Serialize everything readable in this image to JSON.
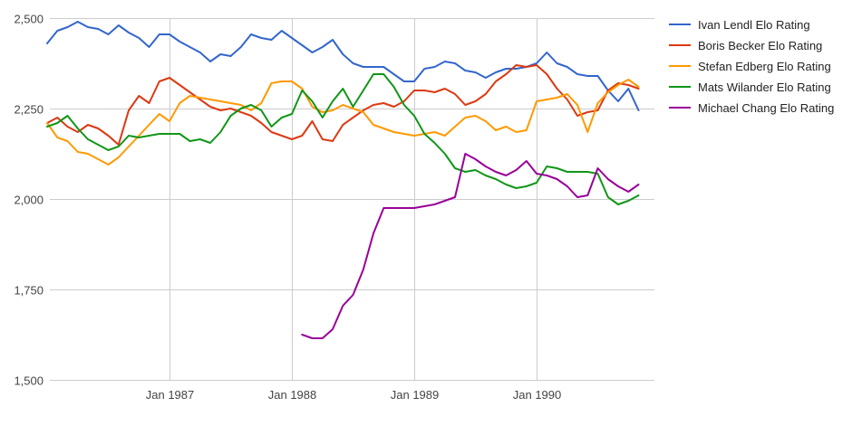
{
  "chart_data": {
    "type": "line",
    "title": "",
    "xlabel": "",
    "ylabel": "",
    "ylim": [
      1500,
      2500
    ],
    "xlim": [
      "1986-01",
      "1990-11"
    ],
    "yticks": [
      1500,
      1750,
      2000,
      2250,
      2500
    ],
    "ytick_labels": [
      "1,500",
      "1,750",
      "2,000",
      "2,250",
      "2,500"
    ],
    "xticks": [
      {
        "label": "Jan 1987",
        "date": "1987-01"
      },
      {
        "label": "Jan 1988",
        "date": "1988-01"
      },
      {
        "label": "Jan 1989",
        "date": "1989-01"
      },
      {
        "label": "Jan 1990",
        "date": "1990-01"
      }
    ],
    "grid": true,
    "legend_position": "right",
    "series": [
      {
        "name": "Ivan Lendl Elo Rating",
        "color": "#3366cc",
        "points": [
          [
            "1986-01",
            2430
          ],
          [
            "1986-02",
            2465
          ],
          [
            "1986-03",
            2475
          ],
          [
            "1986-04",
            2490
          ],
          [
            "1986-05",
            2475
          ],
          [
            "1986-06",
            2470
          ],
          [
            "1986-07",
            2455
          ],
          [
            "1986-08",
            2480
          ],
          [
            "1986-09",
            2460
          ],
          [
            "1986-10",
            2445
          ],
          [
            "1986-11",
            2420
          ],
          [
            "1986-12",
            2455
          ],
          [
            "1987-01",
            2455
          ],
          [
            "1987-02",
            2435
          ],
          [
            "1987-03",
            2420
          ],
          [
            "1987-04",
            2405
          ],
          [
            "1987-05",
            2380
          ],
          [
            "1987-06",
            2400
          ],
          [
            "1987-07",
            2395
          ],
          [
            "1987-08",
            2420
          ],
          [
            "1987-09",
            2455
          ],
          [
            "1987-10",
            2445
          ],
          [
            "1987-11",
            2440
          ],
          [
            "1987-12",
            2465
          ],
          [
            "1988-01",
            2445
          ],
          [
            "1988-02",
            2425
          ],
          [
            "1988-03",
            2405
          ],
          [
            "1988-04",
            2420
          ],
          [
            "1988-05",
            2440
          ],
          [
            "1988-06",
            2400
          ],
          [
            "1988-07",
            2375
          ],
          [
            "1988-08",
            2365
          ],
          [
            "1988-09",
            2365
          ],
          [
            "1988-10",
            2365
          ],
          [
            "1988-11",
            2345
          ],
          [
            "1988-12",
            2325
          ],
          [
            "1989-01",
            2325
          ],
          [
            "1989-02",
            2360
          ],
          [
            "1989-03",
            2365
          ],
          [
            "1989-04",
            2380
          ],
          [
            "1989-05",
            2375
          ],
          [
            "1989-06",
            2355
          ],
          [
            "1989-07",
            2350
          ],
          [
            "1989-08",
            2335
          ],
          [
            "1989-09",
            2350
          ],
          [
            "1989-10",
            2360
          ],
          [
            "1989-11",
            2360
          ],
          [
            "1989-12",
            2365
          ],
          [
            "1990-01",
            2375
          ],
          [
            "1990-02",
            2405
          ],
          [
            "1990-03",
            2375
          ],
          [
            "1990-04",
            2365
          ],
          [
            "1990-05",
            2345
          ],
          [
            "1990-06",
            2340
          ],
          [
            "1990-07",
            2340
          ],
          [
            "1990-08",
            2300
          ],
          [
            "1990-09",
            2270
          ],
          [
            "1990-10",
            2305
          ],
          [
            "1990-11",
            2245
          ]
        ]
      },
      {
        "name": "Boris Becker Elo Rating",
        "color": "#dc3912",
        "points": [
          [
            "1986-01",
            2210
          ],
          [
            "1986-02",
            2225
          ],
          [
            "1986-03",
            2200
          ],
          [
            "1986-04",
            2185
          ],
          [
            "1986-05",
            2205
          ],
          [
            "1986-06",
            2195
          ],
          [
            "1986-07",
            2175
          ],
          [
            "1986-08",
            2150
          ],
          [
            "1986-09",
            2245
          ],
          [
            "1986-10",
            2285
          ],
          [
            "1986-11",
            2265
          ],
          [
            "1986-12",
            2325
          ],
          [
            "1987-01",
            2335
          ],
          [
            "1987-02",
            2315
          ],
          [
            "1987-03",
            2295
          ],
          [
            "1987-04",
            2275
          ],
          [
            "1987-05",
            2255
          ],
          [
            "1987-06",
            2245
          ],
          [
            "1987-07",
            2250
          ],
          [
            "1987-08",
            2240
          ],
          [
            "1987-09",
            2230
          ],
          [
            "1987-10",
            2210
          ],
          [
            "1987-11",
            2185
          ],
          [
            "1987-12",
            2175
          ],
          [
            "1988-01",
            2165
          ],
          [
            "1988-02",
            2175
          ],
          [
            "1988-03",
            2215
          ],
          [
            "1988-04",
            2165
          ],
          [
            "1988-05",
            2160
          ],
          [
            "1988-06",
            2205
          ],
          [
            "1988-07",
            2225
          ],
          [
            "1988-08",
            2245
          ],
          [
            "1988-09",
            2260
          ],
          [
            "1988-10",
            2265
          ],
          [
            "1988-11",
            2255
          ],
          [
            "1988-12",
            2270
          ],
          [
            "1989-01",
            2300
          ],
          [
            "1989-02",
            2300
          ],
          [
            "1989-03",
            2295
          ],
          [
            "1989-04",
            2305
          ],
          [
            "1989-05",
            2290
          ],
          [
            "1989-06",
            2260
          ],
          [
            "1989-07",
            2270
          ],
          [
            "1989-08",
            2290
          ],
          [
            "1989-09",
            2325
          ],
          [
            "1989-10",
            2345
          ],
          [
            "1989-11",
            2370
          ],
          [
            "1989-12",
            2365
          ],
          [
            "1990-01",
            2370
          ],
          [
            "1990-02",
            2345
          ],
          [
            "1990-03",
            2305
          ],
          [
            "1990-04",
            2275
          ],
          [
            "1990-05",
            2230
          ],
          [
            "1990-06",
            2240
          ],
          [
            "1990-07",
            2245
          ],
          [
            "1990-08",
            2300
          ],
          [
            "1990-09",
            2320
          ],
          [
            "1990-10",
            2315
          ],
          [
            "1990-11",
            2305
          ]
        ]
      },
      {
        "name": "Stefan Edberg Elo Rating",
        "color": "#ff9900",
        "points": [
          [
            "1986-01",
            2210
          ],
          [
            "1986-02",
            2170
          ],
          [
            "1986-03",
            2160
          ],
          [
            "1986-04",
            2130
          ],
          [
            "1986-05",
            2125
          ],
          [
            "1986-06",
            2110
          ],
          [
            "1986-07",
            2095
          ],
          [
            "1986-08",
            2115
          ],
          [
            "1986-09",
            2145
          ],
          [
            "1986-10",
            2175
          ],
          [
            "1986-11",
            2205
          ],
          [
            "1986-12",
            2235
          ],
          [
            "1987-01",
            2215
          ],
          [
            "1987-02",
            2265
          ],
          [
            "1987-03",
            2285
          ],
          [
            "1987-04",
            2280
          ],
          [
            "1987-05",
            2275
          ],
          [
            "1987-06",
            2270
          ],
          [
            "1987-07",
            2265
          ],
          [
            "1987-08",
            2260
          ],
          [
            "1987-09",
            2245
          ],
          [
            "1987-10",
            2265
          ],
          [
            "1987-11",
            2320
          ],
          [
            "1987-12",
            2325
          ],
          [
            "1988-01",
            2325
          ],
          [
            "1988-02",
            2305
          ],
          [
            "1988-03",
            2255
          ],
          [
            "1988-04",
            2240
          ],
          [
            "1988-05",
            2245
          ],
          [
            "1988-06",
            2260
          ],
          [
            "1988-07",
            2250
          ],
          [
            "1988-08",
            2240
          ],
          [
            "1988-09",
            2205
          ],
          [
            "1988-10",
            2195
          ],
          [
            "1988-11",
            2185
          ],
          [
            "1988-12",
            2180
          ],
          [
            "1989-01",
            2175
          ],
          [
            "1989-02",
            2180
          ],
          [
            "1989-03",
            2185
          ],
          [
            "1989-04",
            2175
          ],
          [
            "1989-05",
            2200
          ],
          [
            "1989-06",
            2225
          ],
          [
            "1989-07",
            2230
          ],
          [
            "1989-08",
            2215
          ],
          [
            "1989-09",
            2190
          ],
          [
            "1989-10",
            2200
          ],
          [
            "1989-11",
            2185
          ],
          [
            "1989-12",
            2190
          ],
          [
            "1990-01",
            2270
          ],
          [
            "1990-02",
            2275
          ],
          [
            "1990-03",
            2280
          ],
          [
            "1990-04",
            2290
          ],
          [
            "1990-05",
            2260
          ],
          [
            "1990-06",
            2185
          ],
          [
            "1990-07",
            2265
          ],
          [
            "1990-08",
            2295
          ],
          [
            "1990-09",
            2315
          ],
          [
            "1990-10",
            2330
          ],
          [
            "1990-11",
            2310
          ]
        ]
      },
      {
        "name": "Mats Wilander Elo Rating",
        "color": "#109618",
        "points": [
          [
            "1986-01",
            2200
          ],
          [
            "1986-02",
            2210
          ],
          [
            "1986-03",
            2230
          ],
          [
            "1986-04",
            2195
          ],
          [
            "1986-05",
            2165
          ],
          [
            "1986-06",
            2150
          ],
          [
            "1986-07",
            2135
          ],
          [
            "1986-08",
            2145
          ],
          [
            "1986-09",
            2175
          ],
          [
            "1986-10",
            2170
          ],
          [
            "1986-11",
            2175
          ],
          [
            "1986-12",
            2180
          ],
          [
            "1987-01",
            2180
          ],
          [
            "1987-02",
            2180
          ],
          [
            "1987-03",
            2160
          ],
          [
            "1987-04",
            2165
          ],
          [
            "1987-05",
            2155
          ],
          [
            "1987-06",
            2185
          ],
          [
            "1987-07",
            2230
          ],
          [
            "1987-08",
            2250
          ],
          [
            "1987-09",
            2260
          ],
          [
            "1987-10",
            2245
          ],
          [
            "1987-11",
            2200
          ],
          [
            "1987-12",
            2225
          ],
          [
            "1988-01",
            2235
          ],
          [
            "1988-02",
            2300
          ],
          [
            "1988-03",
            2270
          ],
          [
            "1988-04",
            2225
          ],
          [
            "1988-05",
            2270
          ],
          [
            "1988-06",
            2305
          ],
          [
            "1988-07",
            2255
          ],
          [
            "1988-08",
            2300
          ],
          [
            "1988-09",
            2345
          ],
          [
            "1988-10",
            2345
          ],
          [
            "1988-11",
            2310
          ],
          [
            "1988-12",
            2260
          ],
          [
            "1989-01",
            2230
          ],
          [
            "1989-02",
            2180
          ],
          [
            "1989-03",
            2155
          ],
          [
            "1989-04",
            2125
          ],
          [
            "1989-05",
            2085
          ],
          [
            "1989-06",
            2075
          ],
          [
            "1989-07",
            2080
          ],
          [
            "1989-08",
            2065
          ],
          [
            "1989-09",
            2055
          ],
          [
            "1989-10",
            2040
          ],
          [
            "1989-11",
            2030
          ],
          [
            "1989-12",
            2035
          ],
          [
            "1990-01",
            2045
          ],
          [
            "1990-02",
            2090
          ],
          [
            "1990-03",
            2085
          ],
          [
            "1990-04",
            2075
          ],
          [
            "1990-05",
            2075
          ],
          [
            "1990-06",
            2075
          ],
          [
            "1990-07",
            2070
          ],
          [
            "1990-08",
            2005
          ],
          [
            "1990-09",
            1985
          ],
          [
            "1990-10",
            1995
          ],
          [
            "1990-11",
            2010
          ]
        ]
      },
      {
        "name": "Michael Chang Elo Rating",
        "color": "#990099",
        "points": [
          [
            "1988-02",
            1625
          ],
          [
            "1988-03",
            1615
          ],
          [
            "1988-04",
            1615
          ],
          [
            "1988-05",
            1640
          ],
          [
            "1988-06",
            1705
          ],
          [
            "1988-07",
            1735
          ],
          [
            "1988-08",
            1805
          ],
          [
            "1988-09",
            1905
          ],
          [
            "1988-10",
            1975
          ],
          [
            "1988-11",
            1975
          ],
          [
            "1988-12",
            1975
          ],
          [
            "1989-01",
            1975
          ],
          [
            "1989-02",
            1980
          ],
          [
            "1989-03",
            1985
          ],
          [
            "1989-04",
            1995
          ],
          [
            "1989-05",
            2005
          ],
          [
            "1989-06",
            2125
          ],
          [
            "1989-07",
            2110
          ],
          [
            "1989-08",
            2090
          ],
          [
            "1989-09",
            2075
          ],
          [
            "1989-10",
            2065
          ],
          [
            "1989-11",
            2080
          ],
          [
            "1989-12",
            2105
          ],
          [
            "1990-01",
            2070
          ],
          [
            "1990-02",
            2065
          ],
          [
            "1990-03",
            2055
          ],
          [
            "1990-04",
            2035
          ],
          [
            "1990-05",
            2005
          ],
          [
            "1990-06",
            2010
          ],
          [
            "1990-07",
            2085
          ],
          [
            "1990-08",
            2055
          ],
          [
            "1990-09",
            2035
          ],
          [
            "1990-10",
            2020
          ],
          [
            "1990-11",
            2040
          ]
        ]
      }
    ]
  }
}
